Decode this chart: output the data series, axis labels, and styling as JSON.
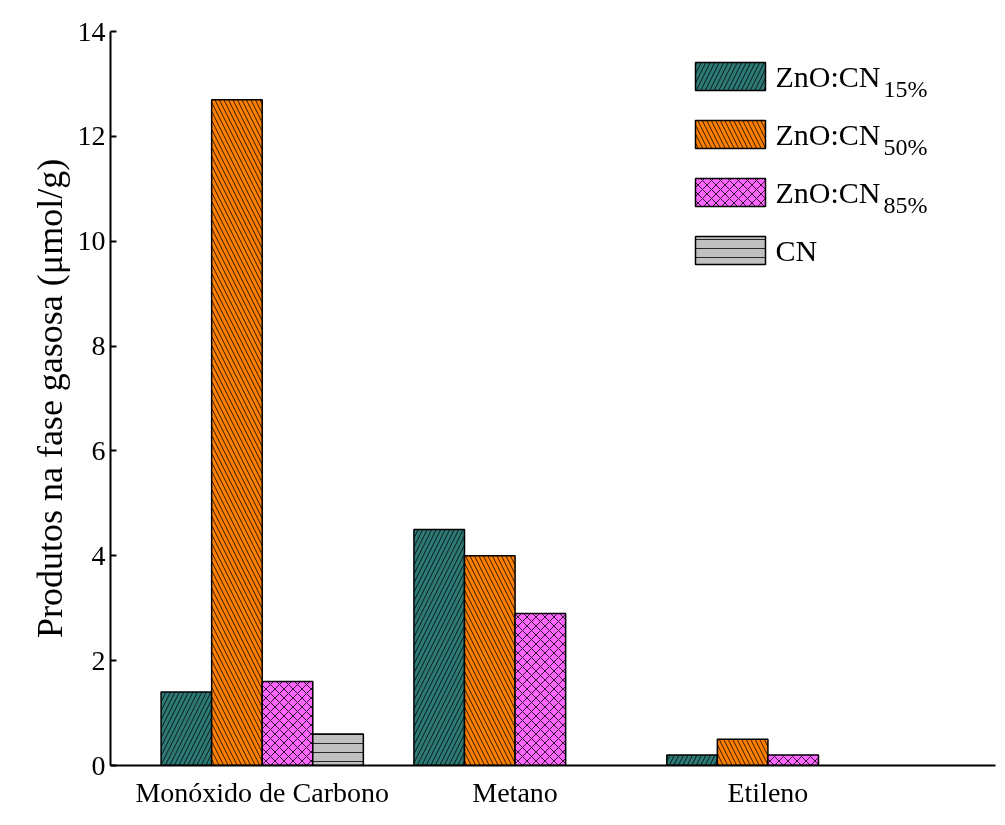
{
  "chart_data": {
    "type": "bar",
    "ylabel": "Produtos na fase gasosa (μmol/g)",
    "categories": [
      "Monóxido de Carbono",
      "Metano",
      "Etileno"
    ],
    "series": [
      {
        "name": "ZnO:CN$_{15%}$",
        "color": "#2e7a76",
        "values": [
          1.4,
          4.5,
          0.2
        ]
      },
      {
        "name": "ZnO:CN$_{50%}$",
        "color": "#ff8000",
        "values": [
          12.7,
          4.0,
          0.5
        ]
      },
      {
        "name": "ZnO:CN$_{85%}$",
        "color": "#ff66ff",
        "values": [
          1.6,
          2.9,
          0.2
        ]
      },
      {
        "name": "CN",
        "color": "#c0c0c0",
        "values": [
          0.6,
          null,
          null
        ]
      }
    ],
    "ylim": [
      0,
      14
    ],
    "yticks": [
      0,
      2,
      4,
      6,
      8,
      10,
      12,
      14
    ],
    "grid": false,
    "legend": "top right"
  }
}
